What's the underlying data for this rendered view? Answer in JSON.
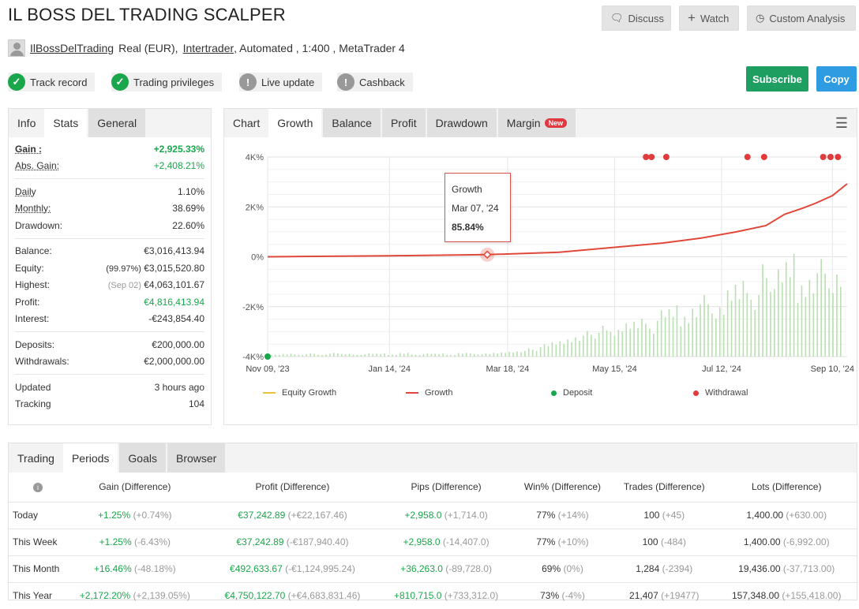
{
  "header": {
    "title": "IL BOSS DEL TRADING SCALPER",
    "discuss": "Discuss",
    "watch": "Watch",
    "custom_analysis": "Custom Analysis"
  },
  "account": {
    "user": "IlBossDelTrading",
    "type": "Real (EUR),",
    "broker": "Intertrader",
    "details": ", Automated , 1:400 , MetaTrader 4"
  },
  "badges": [
    {
      "label": "Track record",
      "status": "ok"
    },
    {
      "label": "Trading privileges",
      "status": "ok"
    },
    {
      "label": "Live update",
      "status": "warn"
    },
    {
      "label": "Cashback",
      "status": "warn"
    }
  ],
  "actions": {
    "subscribe": "Subscribe",
    "copy": "Copy",
    "subscribe_color": "#1f9e62",
    "copy_color": "#2f9be0"
  },
  "stats": {
    "tabs": [
      "Info",
      "Stats",
      "General"
    ],
    "gain": {
      "label": "Gain :",
      "value": "+2,925.33%"
    },
    "abs_gain": {
      "label": "Abs. Gain:",
      "value": "+2,408.21%"
    },
    "daily": {
      "label": "Daily",
      "value": "1.10%"
    },
    "monthly": {
      "label": "Monthly:",
      "value": "38.69%"
    },
    "drawdown": {
      "label": "Drawdown:",
      "value": "22.60%"
    },
    "balance": {
      "label": "Balance:",
      "value": "€3,016,413.94"
    },
    "equity": {
      "label": "Equity:",
      "note": "(99.97%)",
      "value": "€3,015,520.80"
    },
    "highest": {
      "label": "Highest:",
      "note": "(Sep 02)",
      "value": "€4,063,101.67"
    },
    "profit": {
      "label": "Profit:",
      "value": "€4,816,413.94"
    },
    "interest": {
      "label": "Interest:",
      "value": "-€243,854.40"
    },
    "deposits": {
      "label": "Deposits:",
      "value": "€200,000.00"
    },
    "withdrawals": {
      "label": "Withdrawals:",
      "value": "€2,000,000.00"
    },
    "updated": {
      "label": "Updated",
      "value": "3 hours ago"
    },
    "tracking": {
      "label": "Tracking",
      "value": "104"
    }
  },
  "chart_tabs": {
    "items": [
      "Chart",
      "Growth",
      "Balance",
      "Profit",
      "Drawdown",
      "Margin"
    ],
    "new_badge": "New"
  },
  "chart_data": {
    "type": "line",
    "y_ticks": [
      "4K%",
      "2K%",
      "0%",
      "-2K%",
      "-4K%"
    ],
    "ylim": [
      -4000,
      4000
    ],
    "x_ticks": [
      "Nov 09, '23",
      "Jan 14, '24",
      "Mar 18, '24",
      "May 15, '24",
      "Jul 12, '24",
      "Sep 10, '24"
    ],
    "xlim": [
      "2023-11-09",
      "2024-09-18"
    ],
    "grid": true,
    "legend_position": "bottom",
    "legend": [
      "Equity Growth",
      "Growth",
      "Deposit",
      "Withdrawal"
    ],
    "colors": {
      "growth": "#e0483a",
      "equity": "#f0c040",
      "deposit": "#1aa64b",
      "withdrawal": "#e03c3c",
      "bars": "#b8e0b0"
    },
    "growth": [
      [
        "2023-11-09",
        0
      ],
      [
        "2024-01-14",
        40
      ],
      [
        "2024-03-07",
        85.84
      ],
      [
        "2024-04-15",
        180
      ],
      [
        "2024-05-15",
        380
      ],
      [
        "2024-06-10",
        550
      ],
      [
        "2024-07-01",
        750
      ],
      [
        "2024-07-20",
        1000
      ],
      [
        "2024-08-05",
        1250
      ],
      [
        "2024-08-15",
        1700
      ],
      [
        "2024-08-25",
        1950
      ],
      [
        "2024-09-01",
        2150
      ],
      [
        "2024-09-10",
        2450
      ],
      [
        "2024-09-18",
        2925
      ]
    ],
    "deposits": [
      "2023-11-09"
    ],
    "withdrawals": [
      "2024-06-01",
      "2024-06-04",
      "2024-06-12",
      "2024-07-26",
      "2024-08-04",
      "2024-09-05",
      "2024-09-09",
      "2024-09-13"
    ],
    "bar_levels": [
      2,
      3,
      2,
      3,
      2,
      4,
      3,
      2,
      3,
      3,
      2,
      4,
      2,
      3,
      3,
      2,
      4,
      3,
      3,
      4,
      5,
      6,
      8,
      12,
      15,
      18,
      22,
      25,
      30,
      26,
      35,
      40,
      32,
      45,
      50,
      42,
      55,
      60,
      48,
      70,
      80,
      65,
      90,
      85,
      100,
      75,
      88,
      95,
      80
    ],
    "tooltip": {
      "series": "Growth",
      "date": "Mar 07, '24",
      "value": "85.84%"
    }
  },
  "periods": {
    "tabs": [
      "Trading",
      "Periods",
      "Goals",
      "Browser"
    ],
    "columns": [
      "Gain (Difference)",
      "Profit (Difference)",
      "Pips (Difference)",
      "Win% (Difference)",
      "Trades (Difference)",
      "Lots (Difference)"
    ],
    "rows": [
      {
        "period": "Today",
        "gain": "+1.25%",
        "gain_d": "(+0.74%)",
        "profit": "€37,242.89",
        "profit_d": "(+€22,167.46)",
        "pips": "+2,958.0",
        "pips_d": "(+1,714.0)",
        "win": "77%",
        "win_d": "(+14%)",
        "trades": "100",
        "trades_d": "(+45)",
        "lots": "1,400.00",
        "lots_d": "(+630.00)"
      },
      {
        "period": "This Week",
        "gain": "+1.25%",
        "gain_d": "(-6.43%)",
        "profit": "€37,242.89",
        "profit_d": "(-€187,940.40)",
        "pips": "+2,958.0",
        "pips_d": "(-14,407.0)",
        "win": "77%",
        "win_d": "(+10%)",
        "trades": "100",
        "trades_d": "(-484)",
        "lots": "1,400.00",
        "lots_d": "(-6,992.00)"
      },
      {
        "period": "This Month",
        "gain": "+16.46%",
        "gain_d": "(-48.18%)",
        "profit": "€492,633.67",
        "profit_d": "(-€1,124,995.24)",
        "pips": "+36,263.0",
        "pips_d": "(-89,728.0)",
        "win": "69%",
        "win_d": "(0%)",
        "trades": "1,284",
        "trades_d": "(-2394)",
        "lots": "19,436.00",
        "lots_d": "(-37,713.00)"
      },
      {
        "period": "This Year",
        "gain": "+2,172.20%",
        "gain_d": "(+2,139.05%)",
        "profit": "€4,750,122.70",
        "profit_d": "(+€4,683,831.46)",
        "pips": "+810,715.0",
        "pips_d": "(+733,312.0)",
        "win": "73%",
        "win_d": "(-4%)",
        "trades": "21,407",
        "trades_d": "(+19477)",
        "lots": "157,348.00",
        "lots_d": "(+155,418.00)"
      }
    ]
  }
}
